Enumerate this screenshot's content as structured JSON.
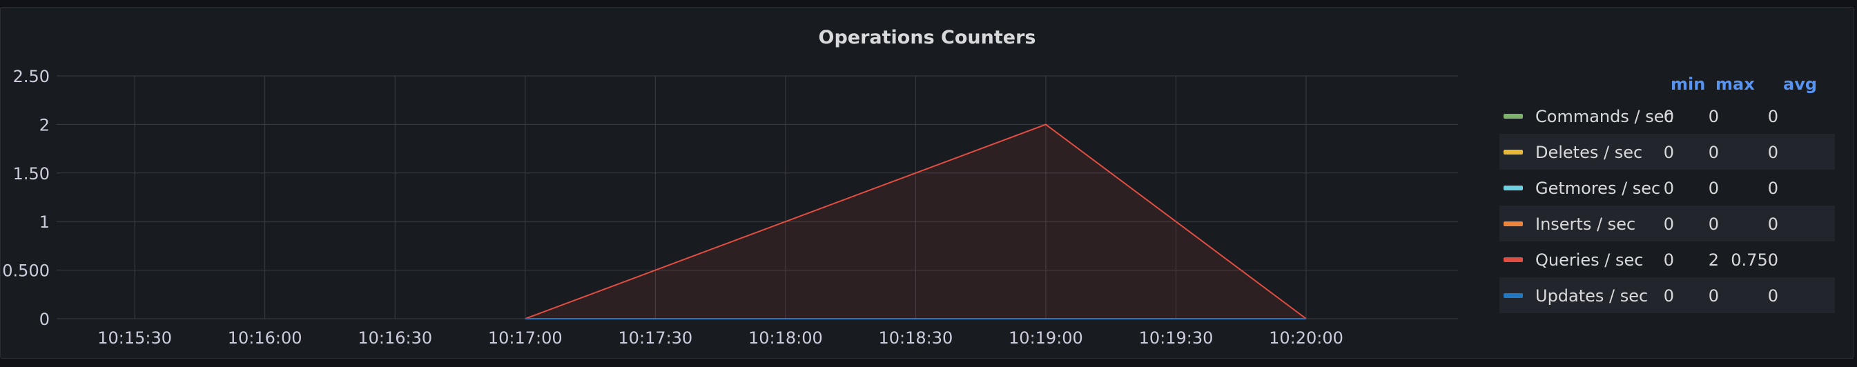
{
  "panel": {
    "title": "Operations Counters"
  },
  "legend": {
    "headers": {
      "min": "min",
      "max": "max",
      "avg": "avg"
    },
    "rows": [
      {
        "name": "Commands / sec",
        "min": "0",
        "max": "0",
        "avg": "0",
        "color": "#7eb26d"
      },
      {
        "name": "Deletes / sec",
        "min": "0",
        "max": "0",
        "avg": "0",
        "color": "#eab839"
      },
      {
        "name": "Getmores / sec",
        "min": "0",
        "max": "0",
        "avg": "0",
        "color": "#6ed0e0"
      },
      {
        "name": "Inserts / sec",
        "min": "0",
        "max": "0",
        "avg": "0",
        "color": "#ef843c"
      },
      {
        "name": "Queries / sec",
        "min": "0",
        "max": "2",
        "avg": "0.750",
        "color": "#e24d42"
      },
      {
        "name": "Updates / sec",
        "min": "0",
        "max": "0",
        "avg": "0",
        "color": "#1f78c1"
      }
    ]
  },
  "chart_data": {
    "type": "area",
    "title": "Operations Counters",
    "x_tick_labels": [
      "10:15:30",
      "10:16:00",
      "10:16:30",
      "10:17:00",
      "10:17:30",
      "10:18:00",
      "10:18:30",
      "10:19:00",
      "10:19:30",
      "10:20:00"
    ],
    "y_tick_labels": [
      "0",
      "0.500",
      "1",
      "1.50",
      "2",
      "2.50"
    ],
    "y_ticks": [
      0,
      0.5,
      1,
      1.5,
      2,
      2.5
    ],
    "ylim": [
      0,
      2.5
    ],
    "xlim": [
      "10:15:12",
      "10:20:35"
    ],
    "grid": true,
    "legend_position": "right",
    "series": [
      {
        "name": "Commands / sec",
        "color": "#7eb26d",
        "x": [
          "10:17:00",
          "10:18:00",
          "10:19:00",
          "10:20:00"
        ],
        "values": [
          0,
          0,
          0,
          0
        ]
      },
      {
        "name": "Deletes / sec",
        "color": "#eab839",
        "x": [
          "10:17:00",
          "10:18:00",
          "10:19:00",
          "10:20:00"
        ],
        "values": [
          0,
          0,
          0,
          0
        ]
      },
      {
        "name": "Getmores / sec",
        "color": "#6ed0e0",
        "x": [
          "10:17:00",
          "10:18:00",
          "10:19:00",
          "10:20:00"
        ],
        "values": [
          0,
          0,
          0,
          0
        ]
      },
      {
        "name": "Inserts / sec",
        "color": "#ef843c",
        "x": [
          "10:17:00",
          "10:18:00",
          "10:19:00",
          "10:20:00"
        ],
        "values": [
          0,
          0,
          0,
          0
        ]
      },
      {
        "name": "Queries / sec",
        "color": "#e24d42",
        "x": [
          "10:17:00",
          "10:18:00",
          "10:19:00",
          "10:20:00"
        ],
        "values": [
          0,
          1,
          2,
          0
        ]
      },
      {
        "name": "Updates / sec",
        "color": "#1f78c1",
        "x": [
          "10:17:00",
          "10:18:00",
          "10:19:00",
          "10:20:00"
        ],
        "values": [
          0,
          0,
          0,
          0
        ]
      }
    ]
  }
}
